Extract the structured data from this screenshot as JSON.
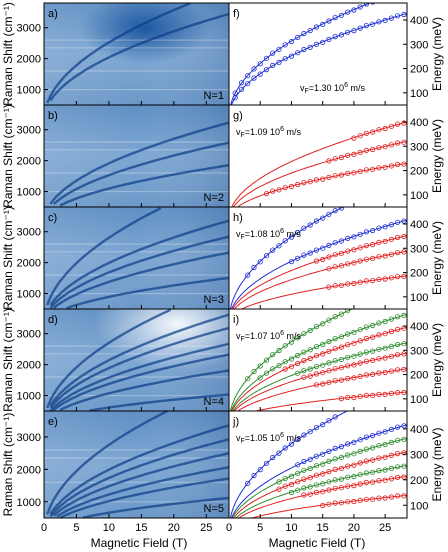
{
  "left_column": {
    "ylabel": "Raman Shift (cm⁻¹)",
    "xlabel": "Magnetic Field (T)",
    "xlim": [
      0,
      28.5
    ],
    "ylim": [
      500,
      3800
    ],
    "xticks": [
      "0",
      "5",
      "10",
      "15",
      "20",
      "25"
    ],
    "yticks": [
      "1000",
      "2000",
      "3000"
    ],
    "panels": [
      {
        "label": "a)",
        "tag": "N=1"
      },
      {
        "label": "b)",
        "tag": "N=2"
      },
      {
        "label": "c)",
        "tag": "N=3"
      },
      {
        "label": "d)",
        "tag": "N=4"
      },
      {
        "label": "e)",
        "tag": "N=5"
      }
    ]
  },
  "right_column": {
    "ylabel": "Energy (meV)",
    "xlabel": "Magnetic Field (T)",
    "xticks": [
      "0",
      "5",
      "10",
      "15",
      "20",
      "25"
    ],
    "yticks": [
      "100",
      "200",
      "300",
      "400"
    ],
    "colors": {
      "blue": "#1f2fd0",
      "red": "#e02020",
      "green": "#2e8b2e"
    },
    "panels": [
      {
        "label": "f)",
        "vf_prefix": "v",
        "vf_sub": "F",
        "vf_value": "=1.30 10",
        "vf_exp": "6",
        "vf_unit": " m/s"
      },
      {
        "label": "g)",
        "vf_prefix": "v",
        "vf_sub": "F",
        "vf_value": "=1.09 10",
        "vf_exp": "6",
        "vf_unit": " m/s"
      },
      {
        "label": "h)",
        "vf_prefix": "v",
        "vf_sub": "F",
        "vf_value": "=1.08 10",
        "vf_exp": "6",
        "vf_unit": " m/s"
      },
      {
        "label": "i)",
        "vf_prefix": "v",
        "vf_sub": "F",
        "vf_value": "=1.07 10",
        "vf_exp": "6",
        "vf_unit": " m/s"
      },
      {
        "label": "j)",
        "vf_prefix": "v",
        "vf_sub": "F",
        "vf_value": "=1.05 10",
        "vf_exp": "6",
        "vf_unit": " m/s"
      }
    ]
  },
  "chart_data": {
    "type": "scatter",
    "x_range": [
      0,
      28.5
    ],
    "y_range": [
      50,
      470
    ],
    "panels": [
      {
        "label": "f)",
        "vf": 1.3,
        "series": [
          {
            "color": "blue",
            "coef": 99,
            "x": [
              1,
              2,
              3,
              4,
              5,
              6,
              7,
              8,
              9,
              10,
              11,
              12,
              13,
              14,
              15,
              16,
              17,
              18,
              19,
              20,
              21,
              22,
              23,
              24,
              25,
              26,
              27,
              28
            ]
          },
          {
            "color": "blue",
            "coef": 80,
            "x": [
              1,
              2,
              3,
              4,
              5,
              6,
              7,
              8,
              9,
              10,
              11,
              12,
              13,
              14,
              15,
              16,
              17,
              18,
              19,
              20,
              21,
              22,
              23,
              24,
              25,
              26,
              27,
              28
            ]
          }
        ]
      },
      {
        "label": "g)",
        "vf": 1.09,
        "series": [
          {
            "color": "red",
            "coef": 75,
            "x": [
              20,
              21,
              22,
              23,
              24,
              25,
              26,
              27,
              28
            ]
          },
          {
            "color": "red",
            "coef": 60,
            "x": [
              16,
              17,
              18,
              19,
              20,
              21,
              22,
              23,
              24,
              25,
              26,
              27,
              28
            ]
          },
          {
            "color": "red",
            "coef": 43,
            "x": [
              6,
              7,
              8,
              9,
              10,
              11,
              12,
              13,
              14,
              15,
              16,
              17,
              18,
              19,
              20,
              21,
              22,
              23,
              24,
              25,
              26,
              27,
              28
            ]
          }
        ]
      },
      {
        "label": "h)",
        "vf": 1.08,
        "series": [
          {
            "color": "blue",
            "coef": 110,
            "x": [
              3,
              4,
              5,
              6,
              7,
              8,
              9,
              10,
              11,
              12,
              13,
              14,
              15,
              16,
              17,
              18
            ]
          },
          {
            "color": "blue",
            "coef": 78,
            "x": [
              10,
              11,
              12,
              13,
              14,
              15,
              16,
              17,
              18,
              19,
              20,
              21,
              22,
              23,
              24,
              25,
              26,
              27,
              28
            ]
          },
          {
            "color": "red",
            "coef": 66,
            "x": [
              14,
              15,
              16,
              17,
              18,
              19,
              20,
              21,
              22,
              23,
              24,
              25,
              26,
              27,
              28
            ]
          },
          {
            "color": "red",
            "coef": 54,
            "x": [
              16,
              17,
              18,
              19,
              20,
              21,
              22,
              23,
              24,
              25,
              26,
              27,
              28
            ]
          },
          {
            "color": "red",
            "coef": 35,
            "x": [
              16,
              17,
              18,
              19,
              20,
              21,
              22,
              23,
              24,
              25,
              26,
              27,
              28
            ]
          }
        ]
      },
      {
        "label": "i)",
        "vf": 1.07,
        "series": [
          {
            "color": "green",
            "coef": 106,
            "x": [
              3,
              4,
              5,
              6,
              7,
              8,
              9,
              10,
              11,
              12,
              13,
              14,
              15,
              16,
              17,
              18,
              19
            ]
          },
          {
            "color": "green",
            "coef": 84,
            "x": [
              5,
              6,
              7,
              8,
              9,
              10,
              11,
              12,
              13,
              14,
              15,
              16,
              17,
              18,
              19,
              20,
              21,
              22,
              23,
              24,
              25,
              26,
              27,
              28
            ]
          },
          {
            "color": "red",
            "coef": 74,
            "x": [
              9,
              10,
              11,
              12,
              13,
              14,
              15,
              16,
              17,
              18,
              19,
              20,
              21,
              22,
              23,
              24,
              25,
              26,
              27,
              28
            ]
          },
          {
            "color": "green",
            "coef": 62,
            "x": [
              11,
              12,
              13,
              14,
              15,
              16,
              17,
              18,
              19,
              20,
              21,
              22,
              23,
              24,
              25,
              26,
              27,
              28
            ]
          },
          {
            "color": "red",
            "coef": 54,
            "x": [
              12,
              13,
              14,
              15,
              16,
              17,
              18,
              19,
              20,
              21,
              22,
              23,
              24,
              25,
              26,
              27,
              28
            ]
          },
          {
            "color": "red",
            "coef": 42,
            "x": [
              14,
              15,
              16,
              17,
              18,
              19,
              20,
              21,
              22,
              23,
              24,
              25,
              26,
              27,
              28
            ]
          },
          {
            "color": "red",
            "coef": 24,
            "x": [
              18,
              19,
              20,
              21,
              22,
              23,
              24,
              25,
              26,
              27,
              28
            ]
          }
        ]
      },
      {
        "label": "j)",
        "vf": 1.05,
        "series": [
          {
            "color": "blue",
            "coef": 108,
            "x": [
              3,
              4,
              5,
              6,
              7,
              8,
              9,
              10,
              11,
              12,
              13,
              14,
              15,
              16,
              17
            ]
          },
          {
            "color": "blue",
            "coef": 78,
            "x": [
              11,
              12,
              13,
              14,
              15,
              16,
              17,
              18,
              19,
              20,
              21,
              22,
              23,
              24,
              25,
              26,
              27,
              28
            ]
          },
          {
            "color": "green",
            "coef": 68,
            "x": [
              8,
              9,
              10,
              11,
              12,
              13,
              14,
              15,
              16,
              17,
              18,
              19,
              20,
              21,
              22,
              23,
              24,
              25,
              26,
              27,
              28
            ]
          },
          {
            "color": "red",
            "coef": 58,
            "x": [
              8,
              9,
              10,
              11,
              12,
              13,
              14,
              15,
              16,
              17,
              18,
              19,
              20,
              21,
              22,
              23,
              24,
              25,
              26,
              27,
              28
            ]
          },
          {
            "color": "green",
            "coef": 48,
            "x": [
              10,
              11,
              12,
              13,
              14,
              15,
              16,
              17,
              18,
              19,
              20,
              21,
              22,
              23,
              24,
              25,
              26,
              27,
              28
            ]
          },
          {
            "color": "red",
            "coef": 40,
            "x": [
              12,
              13,
              14,
              15,
              16,
              17,
              18,
              19,
              20,
              21,
              22,
              23,
              24,
              25,
              26,
              27,
              28
            ]
          },
          {
            "color": "red",
            "coef": 26,
            "x": [
              15,
              16,
              17,
              18,
              19,
              20,
              21,
              22,
              23,
              24,
              25,
              26,
              27,
              28
            ]
          }
        ]
      }
    ]
  }
}
